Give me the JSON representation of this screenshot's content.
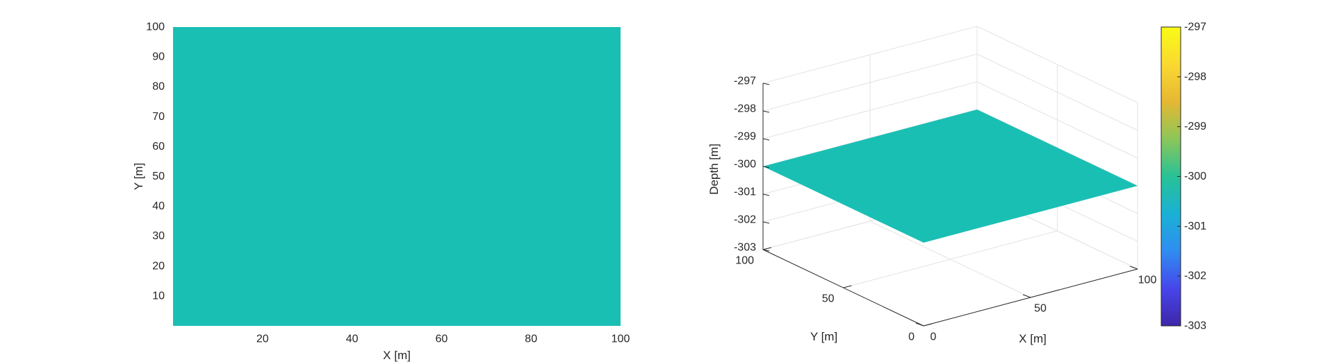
{
  "chart_data": [
    {
      "type": "heatmap",
      "view": "2d",
      "title": "",
      "xlabel": "X [m]",
      "ylabel": "Y [m]",
      "xlim": [
        0,
        100
      ],
      "ylim": [
        0,
        100
      ],
      "xticks": [
        20,
        40,
        60,
        80,
        100
      ],
      "yticks": [
        10,
        20,
        30,
        40,
        50,
        60,
        70,
        80,
        90,
        100
      ],
      "surface_value": -300,
      "surface_color": "#1ABFB4",
      "grid": false
    },
    {
      "type": "surface",
      "view": "3d",
      "title": "",
      "xlabel": "X [m]",
      "ylabel": "Y [m]",
      "zlabel": "Depth [m]",
      "xlim": [
        0,
        100
      ],
      "ylim": [
        0,
        100
      ],
      "zlim": [
        -303,
        -297
      ],
      "xticks": [
        0,
        50,
        100
      ],
      "yticks": [
        0,
        50,
        100
      ],
      "zticks": [
        -303,
        -302,
        -301,
        -300,
        -299,
        -298,
        -297
      ],
      "surface": {
        "x": [
          0,
          100
        ],
        "y": [
          0,
          100
        ],
        "z": -300
      },
      "surface_color": "#1ABFB4",
      "grid": true,
      "colorbar": {
        "ticks": [
          -303,
          -302,
          -301,
          -300,
          -299,
          -298,
          -297
        ],
        "range": [
          -303,
          -297
        ],
        "colormap": "parula",
        "colors": [
          "#3E26A8",
          "#4746EB",
          "#2F8DF1",
          "#1AB1D5",
          "#27C296",
          "#8CC659",
          "#E5B833",
          "#FAD931",
          "#F9FB15"
        ]
      }
    }
  ]
}
